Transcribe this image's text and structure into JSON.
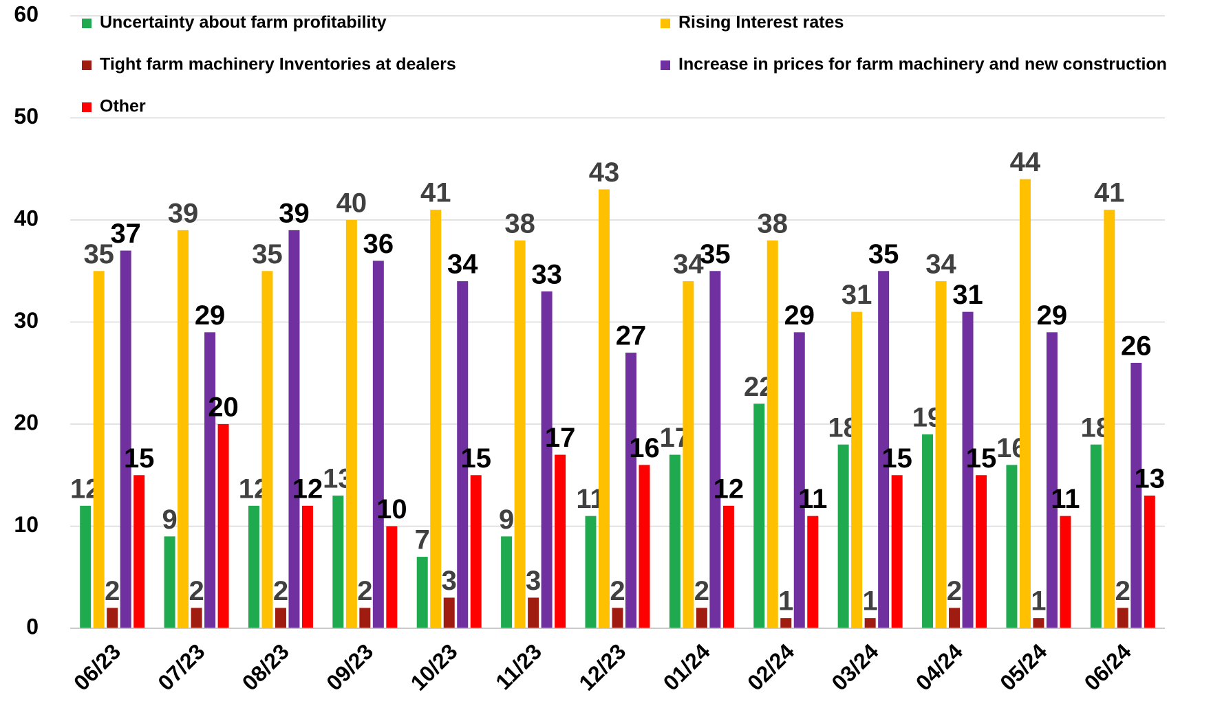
{
  "chart_data": {
    "type": "bar",
    "categories": [
      "06/23",
      "07/23",
      "08/23",
      "09/23",
      "10/23",
      "11/23",
      "12/23",
      "01/24",
      "02/24",
      "03/24",
      "04/24",
      "05/24",
      "06/24"
    ],
    "series": [
      {
        "name": "Uncertainty about farm profitability",
        "color": "#1faa4f",
        "label_color": "#404040",
        "values": [
          12,
          9,
          12,
          13,
          7,
          9,
          11,
          17,
          22,
          18,
          19,
          16,
          18
        ]
      },
      {
        "name": "Rising Interest rates",
        "color": "#ffc000",
        "label_color": "#404040",
        "values": [
          35,
          39,
          35,
          40,
          41,
          38,
          43,
          34,
          38,
          31,
          34,
          44,
          41
        ]
      },
      {
        "name": "Tight farm machinery Inventories at dealers",
        "color": "#a01c10",
        "label_color": "#404040",
        "values": [
          2,
          2,
          2,
          2,
          3,
          3,
          2,
          2,
          1,
          1,
          2,
          1,
          2
        ]
      },
      {
        "name": "Increase in prices for farm machinery and new construction",
        "color": "#7030a0",
        "label_color": "#000000",
        "values": [
          37,
          29,
          39,
          36,
          34,
          33,
          27,
          35,
          29,
          35,
          31,
          29,
          26
        ]
      },
      {
        "name": "Other",
        "color": "#ff0000",
        "label_color": "#000000",
        "values": [
          15,
          20,
          12,
          10,
          15,
          17,
          16,
          12,
          11,
          15,
          15,
          11,
          13
        ]
      }
    ],
    "ylim": [
      0,
      60
    ],
    "yticks": [
      0,
      10,
      20,
      30,
      40,
      50,
      60
    ],
    "grid": true,
    "legend": "top"
  }
}
